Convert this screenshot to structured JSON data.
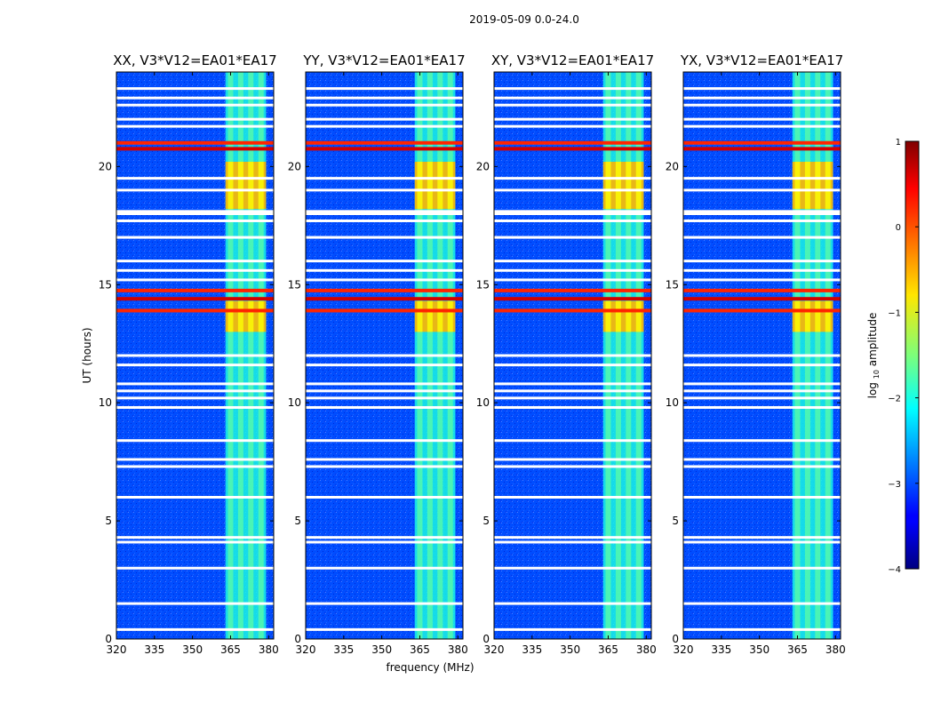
{
  "figure": {
    "title": "2019-05-09 0.0-24.0",
    "xlabel": "frequency (MHz)",
    "ylabel": "UT (hours)"
  },
  "chart_data": {
    "type": "heatmap",
    "title": "2019-05-09 0.0-24.0",
    "xlabel": "frequency (MHz)",
    "ylabel": "UT (hours)",
    "xlim": [
      320,
      382
    ],
    "ylim": [
      0,
      24
    ],
    "xticks": [
      320,
      335,
      350,
      365,
      380
    ],
    "yticks": [
      0,
      5,
      10,
      15,
      20
    ],
    "panels": [
      {
        "title": "XX, V3*V12=EA01*EA17"
      },
      {
        "title": "YY, V3*V12=EA01*EA17"
      },
      {
        "title": "XY, V3*V12=EA01*EA17"
      },
      {
        "title": "YX, V3*V12=EA01*EA17"
      }
    ],
    "colorbar": {
      "label_prefix": "log",
      "label_sub": "10",
      "label_suffix": " amplitude",
      "range": [
        -4,
        1
      ],
      "ticks": [
        1,
        0,
        -1,
        -2,
        -3,
        -4
      ],
      "tick_labels": [
        "1",
        "0",
        "−1",
        "−2",
        "−3",
        "−4"
      ],
      "colormap": "jet"
    },
    "features": {
      "baseline_log_amp": -3.0,
      "active_band_mhz": [
        363,
        379
      ],
      "active_band_log_amp": -2.0,
      "channel_centers_mhz": [
        365,
        369,
        373,
        377
      ],
      "bright_intervals_hours": [
        {
          "start": 13.0,
          "end": 14.3,
          "log_amp": -0.5
        },
        {
          "start": 18.2,
          "end": 20.2,
          "log_amp": -0.5
        }
      ],
      "saturated_rows_hours": [
        13.9,
        14.4,
        14.75,
        20.75,
        21.0
      ],
      "flagged_rows_hours": [
        0.4,
        1.5,
        3.0,
        4.1,
        4.3,
        6.0,
        7.3,
        7.6,
        8.4,
        9.8,
        10.2,
        10.5,
        10.8,
        11.6,
        12.0,
        15.2,
        15.6,
        16.0,
        17.0,
        17.7,
        18.0,
        18.1,
        19.0,
        19.5,
        21.7,
        22.0,
        22.6,
        22.9,
        23.3
      ]
    }
  }
}
